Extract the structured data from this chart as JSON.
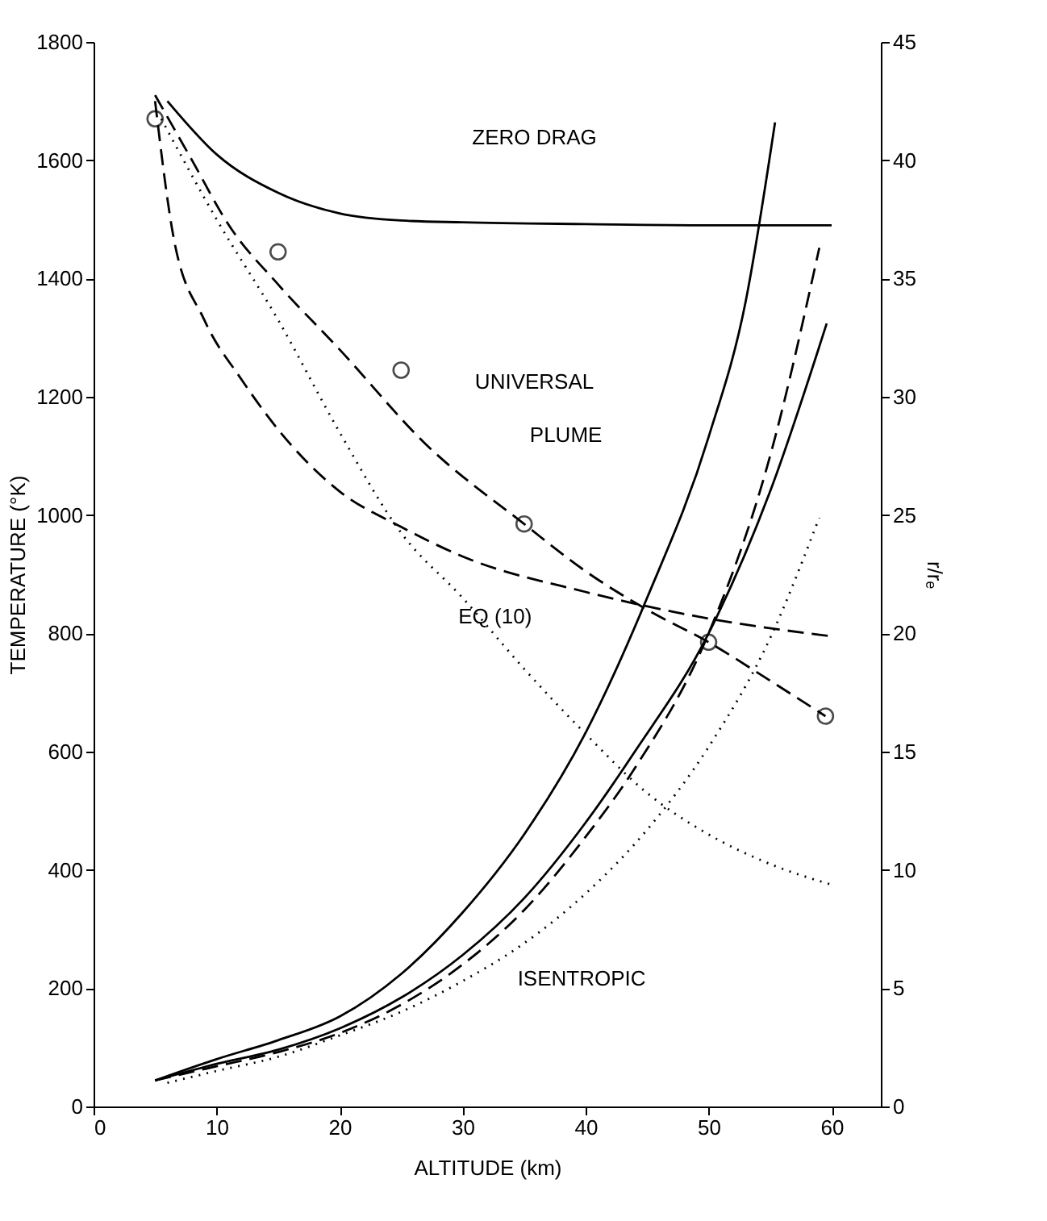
{
  "chart_data": {
    "type": "line",
    "xlabel": "ALTITUDE (km)",
    "ylabel": "TEMPERATURE (°K)",
    "y2label": "r/rₑ",
    "xlim": [
      0,
      64
    ],
    "xticks": [
      0,
      10,
      20,
      30,
      40,
      50,
      60
    ],
    "ylim": [
      0,
      1800
    ],
    "yticks": [
      0,
      200,
      400,
      600,
      800,
      1000,
      1200,
      1400,
      1600,
      1800
    ],
    "y2lim": [
      0,
      45
    ],
    "y2ticks": [
      0,
      5,
      10,
      15,
      20,
      25,
      30,
      35,
      40,
      45
    ],
    "grid": false,
    "marker": "none",
    "series": [
      {
        "color": "#000000",
        "line_style": "solid",
        "x": [
          6,
          10,
          15,
          20,
          25,
          30,
          40,
          50,
          60
        ],
        "values": [
          1700,
          1610,
          1545,
          1510,
          1498,
          1495,
          1492,
          1490,
          1490
        ]
      },
      {
        "color": "#000000",
        "line_style": "dashed",
        "x": [
          5,
          8,
          11,
          15,
          20,
          27,
          35,
          40,
          45,
          50,
          55,
          59.5
        ],
        "values": [
          1710,
          1600,
          1490,
          1390,
          1280,
          1120,
          985,
          905,
          840,
          785,
          720,
          660
        ]
      },
      {
        "color": "#000000",
        "line_style": "dashed",
        "x": [
          5,
          6.5,
          9,
          12,
          16,
          20,
          25,
          30,
          40,
          50,
          60
        ],
        "values": [
          1700,
          1470,
          1330,
          1230,
          1120,
          1040,
          980,
          930,
          870,
          825,
          795
        ]
      },
      {
        "color": "#000000",
        "line_style": "dotted",
        "x": [
          5.5,
          10,
          15,
          20,
          25,
          30,
          35,
          40,
          45,
          50,
          55,
          60
        ],
        "values": [
          1670,
          1500,
          1330,
          1140,
          970,
          860,
          740,
          630,
          530,
          460,
          410,
          375
        ]
      },
      {
        "type": "scatter",
        "color": "#000000",
        "marker": "circle",
        "x": [
          5,
          15,
          25,
          35,
          50,
          59.5
        ],
        "values": [
          1670,
          1445,
          1245,
          985,
          785,
          660
        ]
      },
      {
        "color": "#000000",
        "line_style": "solid",
        "axis": "y2",
        "x": [
          5,
          10,
          15,
          20,
          25,
          30,
          35,
          40,
          45,
          50,
          53,
          55.4
        ],
        "values": [
          1.1,
          2.0,
          2.8,
          3.8,
          5.6,
          8.2,
          11.5,
          15.8,
          21.5,
          28.3,
          34,
          41.6
        ]
      },
      {
        "color": "#000000",
        "line_style": "solid",
        "axis": "y2",
        "x": [
          5,
          10,
          15,
          20,
          25,
          30,
          35,
          40,
          44,
          50,
          55,
          59.6
        ],
        "values": [
          1.1,
          1.8,
          2.4,
          3.3,
          4.6,
          6.4,
          8.8,
          12.0,
          15.0,
          20.0,
          26.0,
          33.1
        ]
      },
      {
        "color": "#000000",
        "line_style": "dashed",
        "axis": "y2",
        "x": [
          5,
          10,
          15,
          20,
          25,
          30,
          35,
          40,
          44,
          50,
          55,
          59
        ],
        "values": [
          1.1,
          1.7,
          2.3,
          3.1,
          4.3,
          6.0,
          8.3,
          11.4,
          14.3,
          20.0,
          27.5,
          36.3
        ]
      },
      {
        "color": "#000000",
        "line_style": "dotted",
        "axis": "y2",
        "x": [
          6,
          10,
          15,
          20,
          25,
          30,
          35,
          40,
          45,
          50,
          55,
          59
        ],
        "values": [
          1.0,
          1.5,
          2.1,
          3.0,
          4.0,
          5.3,
          6.9,
          9.0,
          11.7,
          15.2,
          19.8,
          24.9
        ]
      }
    ],
    "annotations": [
      "ZERO DRAG",
      "UNIVERSAL",
      "PLUME",
      "EQ (10)",
      "ISENTROPIC"
    ]
  }
}
